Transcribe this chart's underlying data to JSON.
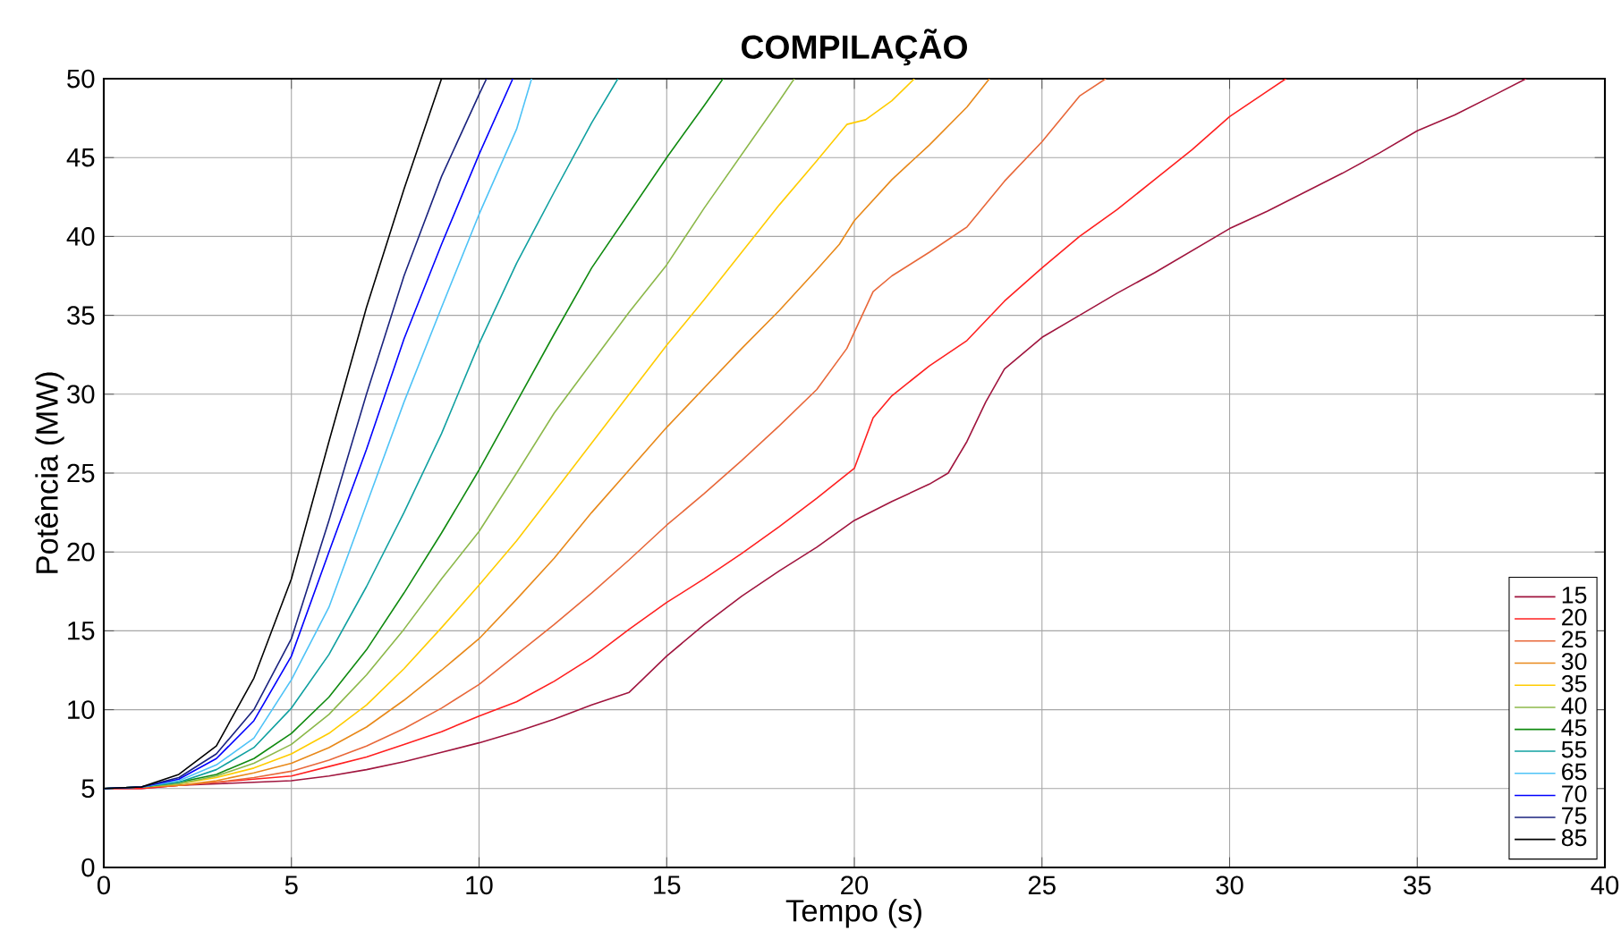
{
  "chart_data": {
    "type": "line",
    "title": "COMPILAÇÃO",
    "xlabel": "Tempo (s)",
    "ylabel": "Potência (MW)",
    "xlim": [
      0,
      40
    ],
    "ylim": [
      0,
      50
    ],
    "xticks": [
      0,
      5,
      10,
      15,
      20,
      25,
      30,
      35,
      40
    ],
    "yticks": [
      0,
      5,
      10,
      15,
      20,
      25,
      30,
      35,
      40,
      45,
      50
    ],
    "grid": true,
    "legend": "bottom right",
    "line_style": "solid",
    "marker": "none",
    "series": [
      {
        "name": "15",
        "color": "#a0153e",
        "x": [
          0,
          1,
          2,
          3,
          4,
          5,
          6,
          7,
          8,
          9,
          10,
          11,
          12,
          13,
          13.5,
          14,
          15,
          16,
          17,
          18,
          19,
          20,
          21,
          22,
          22.5,
          23,
          23.5,
          24,
          25,
          26,
          27,
          28,
          29,
          30,
          31,
          32,
          33,
          34,
          35,
          36,
          37,
          37.9
        ],
        "values": [
          5,
          5,
          5.2,
          5.3,
          5.4,
          5.5,
          5.8,
          6.2,
          6.7,
          7.3,
          7.9,
          8.6,
          9.4,
          10.3,
          10.7,
          11.1,
          13.4,
          15.4,
          17.2,
          18.8,
          20.3,
          22.0,
          23.2,
          24.3,
          25.0,
          27.0,
          29.5,
          31.6,
          33.6,
          35.0,
          36.4,
          37.7,
          39.1,
          40.5,
          41.6,
          42.8,
          44.0,
          45.3,
          46.7,
          47.7,
          48.9,
          50
        ]
      },
      {
        "name": "20",
        "color": "#ff2020",
        "x": [
          0,
          1,
          2,
          3,
          4,
          5,
          6,
          7,
          8,
          9,
          10,
          11,
          12,
          13,
          14,
          15,
          16,
          17,
          18,
          19,
          20,
          20.5,
          21,
          22,
          23,
          24,
          25,
          26,
          27,
          28,
          29,
          30,
          31,
          31.5
        ],
        "values": [
          5,
          5,
          5.2,
          5.4,
          5.6,
          5.8,
          6.4,
          7.0,
          7.8,
          8.6,
          9.6,
          10.5,
          11.8,
          13.3,
          15.1,
          16.8,
          18.3,
          19.9,
          21.6,
          23.4,
          25.3,
          28.5,
          29.9,
          31.8,
          33.4,
          35.9,
          38.0,
          40.0,
          41.7,
          43.6,
          45.5,
          47.6,
          49.2,
          50
        ]
      },
      {
        "name": "25",
        "color": "#e8683a",
        "x": [
          0,
          1,
          2,
          3,
          4,
          5,
          6,
          7,
          8,
          9,
          10,
          11,
          12,
          13,
          14,
          15,
          16,
          17,
          18,
          19,
          19.8,
          20.5,
          21,
          22,
          23,
          24,
          25,
          26,
          26.7
        ],
        "values": [
          5,
          5.1,
          5.2,
          5.4,
          5.7,
          6.1,
          6.8,
          7.7,
          8.8,
          10.1,
          11.6,
          13.5,
          15.4,
          17.4,
          19.5,
          21.7,
          23.7,
          25.8,
          28.0,
          30.3,
          32.9,
          36.5,
          37.5,
          39.0,
          40.6,
          43.5,
          46.0,
          48.9,
          50
        ]
      },
      {
        "name": "30",
        "color": "#e8891a",
        "x": [
          0,
          1,
          2,
          3,
          4,
          5,
          6,
          7,
          8,
          9,
          10,
          11,
          12,
          13,
          14,
          15,
          16,
          17,
          18,
          19,
          19.6,
          20,
          21,
          22,
          23,
          23.6
        ],
        "values": [
          5,
          5.1,
          5.2,
          5.5,
          6.0,
          6.6,
          7.6,
          8.9,
          10.6,
          12.5,
          14.5,
          17.0,
          19.6,
          22.5,
          25.2,
          27.9,
          30.4,
          32.9,
          35.3,
          37.9,
          39.5,
          41.0,
          43.6,
          45.8,
          48.2,
          50
        ]
      },
      {
        "name": "35",
        "color": "#ffcc00",
        "x": [
          0,
          1,
          2,
          3,
          4,
          5,
          6,
          7,
          8,
          9,
          10,
          11,
          12,
          13,
          14,
          15,
          16,
          17,
          18,
          19,
          19.8,
          20.3,
          21,
          21.6
        ],
        "values": [
          5,
          5.1,
          5.3,
          5.7,
          6.3,
          7.2,
          8.5,
          10.3,
          12.6,
          15.2,
          17.9,
          20.7,
          23.8,
          26.9,
          30.0,
          33.1,
          36.0,
          39.0,
          42.0,
          44.8,
          47.1,
          47.4,
          48.6,
          50
        ]
      },
      {
        "name": "40",
        "color": "#8cb84a",
        "x": [
          0,
          1,
          2,
          3,
          4,
          5,
          6,
          7,
          8,
          9,
          10,
          11,
          12,
          13,
          14,
          15,
          16,
          17,
          18,
          18.4
        ],
        "values": [
          5,
          5.1,
          5.3,
          5.8,
          6.6,
          7.8,
          9.7,
          12.2,
          15.1,
          18.3,
          21.3,
          25.0,
          28.8,
          32.0,
          35.2,
          38.2,
          41.8,
          45.2,
          48.6,
          50
        ]
      },
      {
        "name": "45",
        "color": "#108a10",
        "x": [
          0,
          1,
          2,
          3,
          4,
          5,
          6,
          7,
          8,
          9,
          10,
          11,
          12,
          13,
          14,
          15,
          16,
          16.5
        ],
        "values": [
          5,
          5.1,
          5.4,
          5.9,
          6.9,
          8.5,
          10.8,
          13.8,
          17.4,
          21.2,
          25.2,
          29.5,
          33.8,
          38.0,
          41.5,
          45.0,
          48.3,
          50
        ]
      },
      {
        "name": "55",
        "color": "#10a0a0",
        "x": [
          0,
          1,
          2,
          3,
          4,
          5,
          6,
          7,
          8,
          9,
          10,
          11,
          12,
          13,
          13.7
        ],
        "values": [
          5,
          5.1,
          5.4,
          6.2,
          7.6,
          10.1,
          13.5,
          17.8,
          22.5,
          27.5,
          33.2,
          38.3,
          42.8,
          47.2,
          50
        ]
      },
      {
        "name": "65",
        "color": "#4fc3f7",
        "x": [
          0,
          1,
          2,
          3,
          4,
          5,
          6,
          7,
          8,
          9,
          10,
          11,
          11.4
        ],
        "values": [
          5,
          5.1,
          5.5,
          6.5,
          8.2,
          11.9,
          16.5,
          23.0,
          29.5,
          35.5,
          41.4,
          46.8,
          50
        ]
      },
      {
        "name": "70",
        "color": "#0000ff",
        "x": [
          0,
          1,
          2,
          3,
          4,
          5,
          6,
          7,
          8,
          9,
          10,
          10.9
        ],
        "values": [
          5,
          5.1,
          5.6,
          6.9,
          9.3,
          13.4,
          20.0,
          26.5,
          33.5,
          39.5,
          45.2,
          50
        ]
      },
      {
        "name": "75",
        "color": "#1a237e",
        "x": [
          0,
          1,
          2,
          3,
          4,
          5,
          6,
          7,
          8,
          9,
          10,
          10.2
        ],
        "values": [
          5,
          5.1,
          5.7,
          7.2,
          10.0,
          14.5,
          22.0,
          30.0,
          37.5,
          43.8,
          49.0,
          50
        ]
      },
      {
        "name": "85",
        "color": "#000000",
        "x": [
          0,
          1,
          2,
          3,
          4,
          5,
          6,
          7,
          8,
          9
        ],
        "values": [
          5,
          5.1,
          5.9,
          7.7,
          12.0,
          18.3,
          27.0,
          35.5,
          43.0,
          50
        ]
      }
    ]
  }
}
